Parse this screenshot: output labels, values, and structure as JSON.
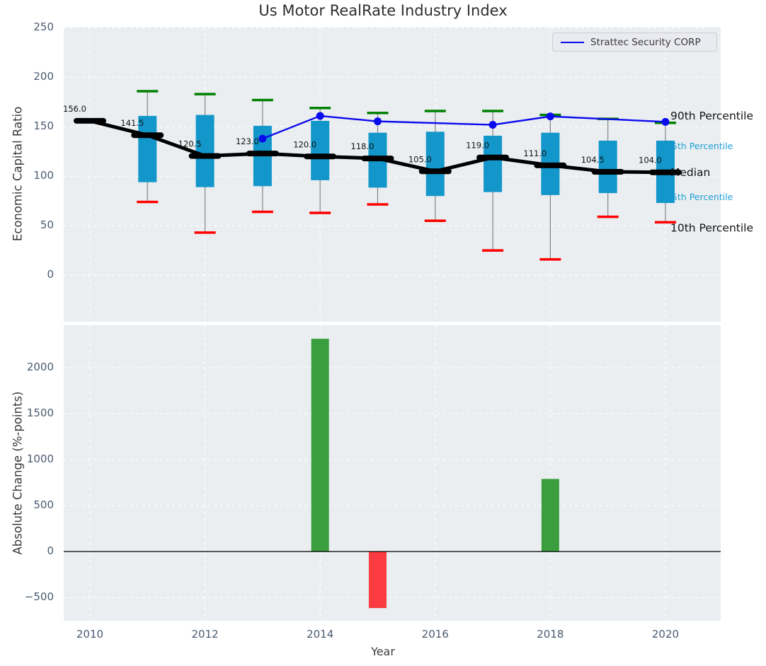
{
  "figure": {
    "title": "Us Motor RealRate Industry Index"
  },
  "colors": {
    "plot_bg": "#eaeef0",
    "grid": "#ffffff",
    "box": "#1397cb",
    "whisker": "#848484",
    "cap_90th": "#008000",
    "cap_10th": "#ff0000",
    "median": "#000000",
    "company_line": "#0a0aee",
    "bar_positive": "#3a9e3e",
    "bar_negative": "#fb3b40",
    "tick_text": "#4a5b70",
    "label_text": "#3a3a3a",
    "percentile_minor_text": "#1fa0d6",
    "percentile_major_text": "#111111",
    "zero_line": "#000000",
    "median_value_label": "#111111"
  },
  "legend": {
    "label": "Strattec Security CORP"
  },
  "chart_data": [
    {
      "type": "boxplot+line",
      "title": "Us Motor RealRate Industry Index",
      "ylabel": "Economic Capital Ratio",
      "xlabel": "",
      "xlim": [
        2009.545,
        2020.96
      ],
      "ylim": [
        -47,
        251
      ],
      "grid": "white dashed, on",
      "legend_position": "upper right",
      "ytick_values": [
        0,
        50,
        100,
        150,
        200,
        250
      ],
      "ytick_labels": [
        "0",
        "50",
        "100",
        "150",
        "200",
        "250"
      ],
      "xtick_values": [
        2010,
        2012,
        2014,
        2016,
        2018,
        2020
      ],
      "xtick_labels": [
        "",
        "",
        "",
        "",
        "",
        ""
      ],
      "median_series": {
        "name": "Median",
        "points": [
          {
            "year": 2010,
            "value": 156.0,
            "label": "156.0"
          },
          {
            "year": 2011,
            "value": 141.5,
            "label": "141.5"
          },
          {
            "year": 2012,
            "value": 120.5,
            "label": "120.5"
          },
          {
            "year": 2013,
            "value": 123.0,
            "label": "123.0"
          },
          {
            "year": 2014,
            "value": 120.0,
            "label": "120.0"
          },
          {
            "year": 2015,
            "value": 118.0,
            "label": "118.0"
          },
          {
            "year": 2016,
            "value": 105.0,
            "label": "105.0"
          },
          {
            "year": 2017,
            "value": 119.0,
            "label": "119.0"
          },
          {
            "year": 2018,
            "value": 111.0,
            "label": "111.0"
          },
          {
            "year": 2019,
            "value": 104.5,
            "label": "104.5"
          },
          {
            "year": 2020,
            "value": 104.0,
            "label": "104.0"
          }
        ]
      },
      "boxes": [
        {
          "year": 2011,
          "p10": 74,
          "p25": 94,
          "p75": 161,
          "p90": 186
        },
        {
          "year": 2012,
          "p10": 43,
          "p25": 89,
          "p75": 162,
          "p90": 183
        },
        {
          "year": 2013,
          "p10": 64,
          "p25": 90,
          "p75": 151,
          "p90": 177
        },
        {
          "year": 2014,
          "p10": 63,
          "p25": 96,
          "p75": 156,
          "p90": 169
        },
        {
          "year": 2015,
          "p10": 71.5,
          "p25": 88.5,
          "p75": 144,
          "p90": 164
        },
        {
          "year": 2016,
          "p10": 55,
          "p25": 80,
          "p75": 145,
          "p90": 166
        },
        {
          "year": 2017,
          "p10": 25,
          "p25": 84,
          "p75": 141,
          "p90": 166
        },
        {
          "year": 2018,
          "p10": 16,
          "p25": 81,
          "p75": 144,
          "p90": 162
        },
        {
          "year": 2019,
          "p10": 59,
          "p25": 83,
          "p75": 136,
          "p90": 158
        },
        {
          "year": 2020,
          "p10": 53.5,
          "p25": 73,
          "p75": 136,
          "p90": 154
        }
      ],
      "company_line": {
        "name": "Strattec Security CORP",
        "points": [
          {
            "year": 2013,
            "value": 138
          },
          {
            "year": 2014,
            "value": 161
          },
          {
            "year": 2015,
            "value": 155.5
          },
          {
            "year": 2017,
            "value": 152
          },
          {
            "year": 2018,
            "value": 160.5
          },
          {
            "year": 2020,
            "value": 155
          }
        ]
      },
      "right_labels": [
        {
          "text": "90th Percentile",
          "anchor_value": 161.4,
          "style": "major"
        },
        {
          "text": "75th Percentile",
          "anchor_value": 130.7,
          "style": "minor"
        },
        {
          "text": "Median",
          "anchor_value": 104.3,
          "style": "major"
        },
        {
          "text": "25th Percentile",
          "anchor_value": 79.3,
          "style": "minor"
        },
        {
          "text": "10th Percentile",
          "anchor_value": 47.9,
          "style": "major"
        }
      ]
    },
    {
      "type": "bar",
      "ylabel": "Absolute Change (%-points)",
      "xlabel": "Year",
      "xlim": [
        2009.545,
        2020.96
      ],
      "ylim": [
        -753,
        2462
      ],
      "grid": "white dashed, on",
      "ytick_values": [
        -500,
        0,
        500,
        1000,
        1500,
        2000
      ],
      "ytick_labels": [
        "−500",
        "0",
        "500",
        "1000",
        "1500",
        "2000"
      ],
      "xtick_values": [
        2010,
        2012,
        2014,
        2016,
        2018,
        2020
      ],
      "xtick_labels": [
        "2010",
        "2012",
        "2014",
        "2016",
        "2018",
        "2020"
      ],
      "zero_line": true,
      "bars": [
        {
          "year": 2014,
          "value": 2315
        },
        {
          "year": 2015,
          "value": -615
        },
        {
          "year": 2018,
          "value": 790
        }
      ]
    }
  ]
}
